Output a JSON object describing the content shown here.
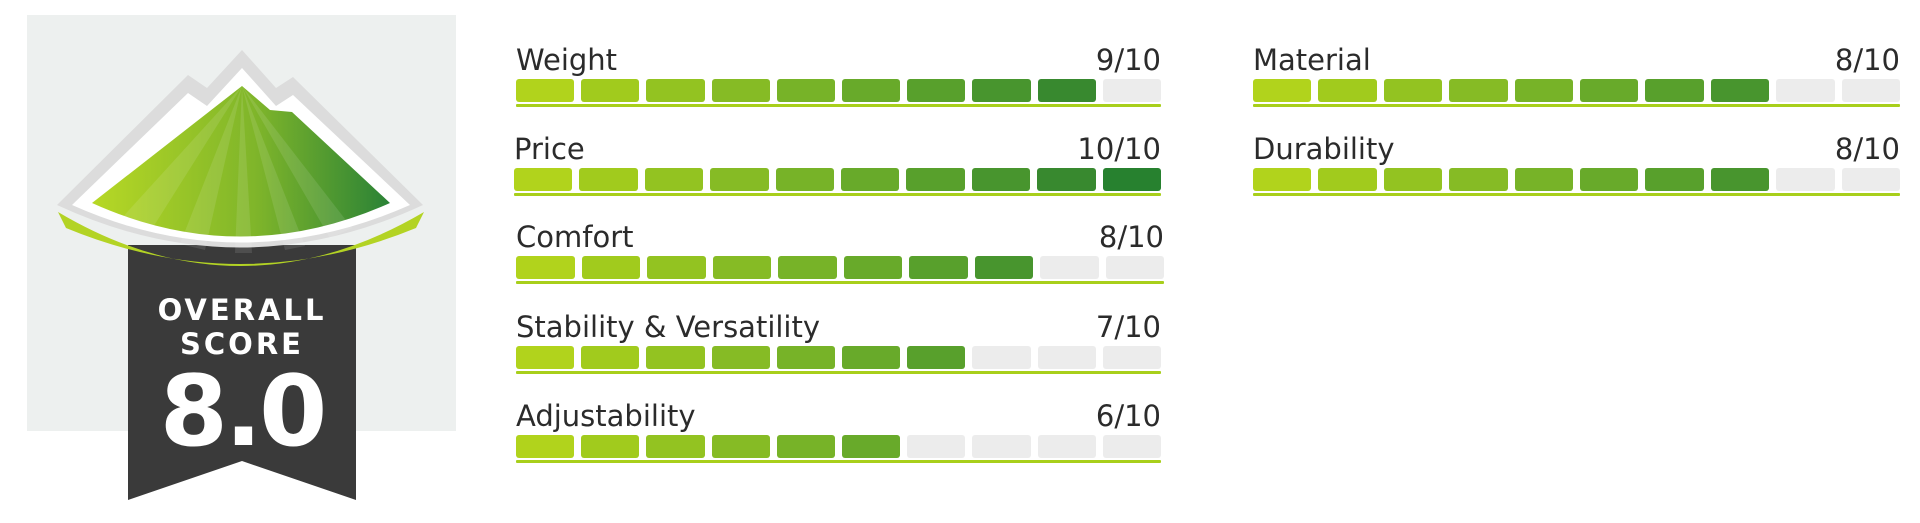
{
  "badge": {
    "label_line1": "OVERALL",
    "label_line2": "SCORE",
    "score": "8.0"
  },
  "colors": {
    "segment_scale": [
      "#b1d31c",
      "#a1cb1d",
      "#93c321",
      "#86bb25",
      "#77b328",
      "#68aa2a",
      "#58a02c",
      "#48952e",
      "#38892f",
      "#27812f"
    ],
    "empty_segment": "#ececec",
    "baseline": "#a8cf1b",
    "badge_dark": "#3a3a3a",
    "badge_bg": "#edf0ef"
  },
  "metrics": [
    {
      "label": "Weight",
      "value_text": "9/10",
      "score": 9,
      "max": 10
    },
    {
      "label": "Price",
      "value_text": "10/10",
      "score": 10,
      "max": 10
    },
    {
      "label": "Comfort",
      "value_text": "8/10",
      "score": 8,
      "max": 10
    },
    {
      "label": "Stability & Versatility",
      "value_text": "7/10",
      "score": 7,
      "max": 10
    },
    {
      "label": "Adjustability",
      "value_text": "6/10",
      "score": 6,
      "max": 10
    },
    {
      "label": "Material",
      "value_text": "8/10",
      "score": 8,
      "max": 10
    },
    {
      "label": "Durability",
      "value_text": "8/10",
      "score": 8,
      "max": 10
    }
  ]
}
